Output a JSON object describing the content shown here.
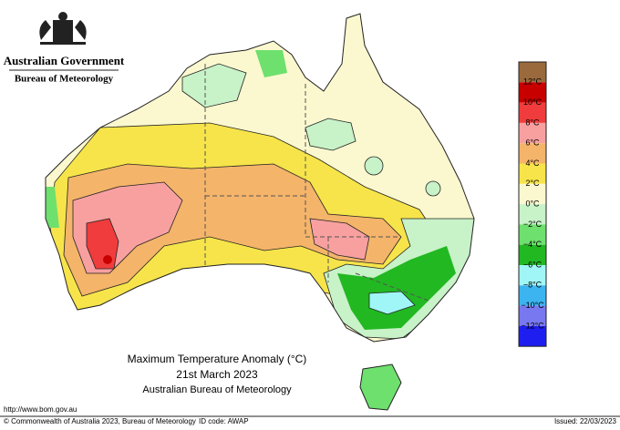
{
  "header": {
    "government": "Australian Government",
    "agency": "Bureau of Meteorology"
  },
  "title": {
    "line1": "Maximum Temperature Anomaly (°C)",
    "line2": "21st March 2023",
    "line3": "Australian Bureau of Meteorology"
  },
  "legend": [
    {
      "color": "#9a6a3c",
      "label": null
    },
    {
      "color": "#c80000",
      "label": "12°C"
    },
    {
      "color": "#f03c3c",
      "label": "10°C"
    },
    {
      "color": "#f8a0a0",
      "label": "8°C"
    },
    {
      "color": "#f4b46a",
      "label": "6°C"
    },
    {
      "color": "#f6e44a",
      "label": "4°C"
    },
    {
      "color": "#fbf8cf",
      "label": "2°C"
    },
    {
      "color": "#c8f2c8",
      "label": "0°C"
    },
    {
      "color": "#6ee06e",
      "label": "−2°C"
    },
    {
      "color": "#22b822",
      "label": "−4°C"
    },
    {
      "color": "#a0f6f6",
      "label": "−6°C"
    },
    {
      "color": "#3cb4f0",
      "label": "−8°C"
    },
    {
      "color": "#7878f0",
      "label": "−10°C"
    },
    {
      "color": "#1e1ef0",
      "label": "−12°C"
    }
  ],
  "footer": {
    "url": "http://www.bom.gov.au",
    "copyright": "© Commonwealth of Australia 2023, Bureau of Meteorology",
    "id_code": "ID code: AWAP",
    "issued": "Issued: 22/03/2023"
  }
}
